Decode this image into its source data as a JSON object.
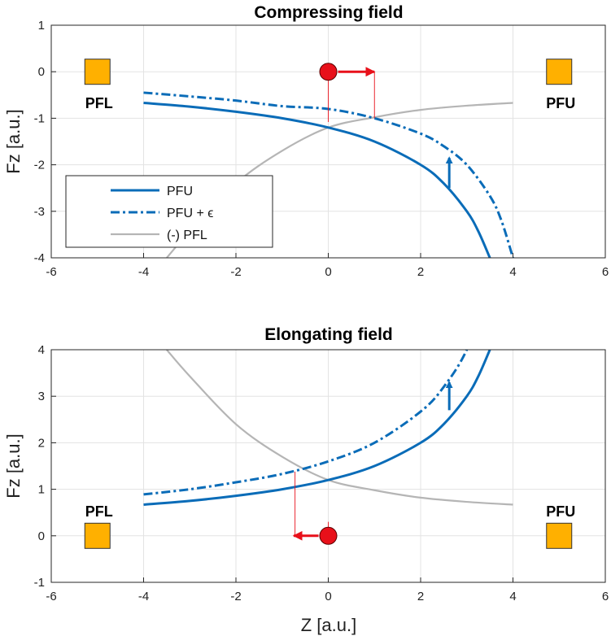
{
  "colors": {
    "pfu": "#0a6cb8",
    "pfl": "#b5b5b5",
    "square_fill": "#ffb000",
    "square_edge": "#333333",
    "marker": "#e8101a",
    "grid": "#e3e3e3"
  },
  "chart_data": [
    {
      "type": "line",
      "title": "Compressing field",
      "xlabel": "",
      "ylabel": "Fz [a.u.]",
      "xlim": [
        -6,
        6
      ],
      "ylim": [
        -4,
        1
      ],
      "xticks": [
        -6,
        -4,
        -2,
        0,
        2,
        4,
        6
      ],
      "yticks": [
        -4,
        -3,
        -2,
        -1,
        0,
        1
      ],
      "grid": true,
      "legend": {
        "placement": "bottom-left",
        "entries": [
          {
            "label": "PFU",
            "style": "solid",
            "color": "#0a6cb8"
          },
          {
            "label": "PFU + ϵ",
            "style": "dashdot",
            "color": "#0a6cb8"
          },
          {
            "label": "(-) PFL",
            "style": "solid",
            "color": "#b5b5b5"
          }
        ]
      },
      "series": [
        {
          "key": "pfu",
          "x": [
            -4,
            -3,
            -2,
            -1,
            0,
            1,
            2,
            2.5,
            3,
            3.25,
            3.5
          ],
          "y": [
            -0.67,
            -0.75,
            -0.86,
            -1.0,
            -1.2,
            -1.5,
            -2.0,
            -2.4,
            -3.0,
            -3.43,
            -4.0
          ]
        },
        {
          "key": "pfu_eps",
          "x": [
            -4,
            -3,
            -2,
            -1,
            0,
            1,
            2,
            2.5,
            3,
            3.5,
            3.75,
            4
          ],
          "y": [
            -0.45,
            -0.53,
            -0.62,
            -0.74,
            -0.8,
            -1.0,
            -1.33,
            -1.6,
            -2.0,
            -2.67,
            -3.2,
            -4.0
          ]
        },
        {
          "key": "pfl",
          "x": [
            -3.5,
            -3,
            -2,
            -1,
            0,
            1,
            2,
            3,
            4
          ],
          "y": [
            -4.0,
            -3.43,
            -2.4,
            -1.7,
            -1.2,
            -0.98,
            -0.82,
            -0.73,
            -0.67
          ]
        }
      ],
      "squares": [
        {
          "label": "PFL",
          "x": -5,
          "y": 0
        },
        {
          "label": "PFU",
          "x": 5,
          "y": 0
        }
      ],
      "marker": {
        "x": 0,
        "y": 0,
        "arrow_to_x": 1,
        "vlines": [
          {
            "x": 0,
            "y1": -1.08,
            "y2": 0
          },
          {
            "x": 1,
            "y1": -1.0,
            "y2": 0
          }
        ]
      },
      "shift_arrow": {
        "x": 2.62,
        "y_from": -2.5,
        "y_to": -1.85
      }
    },
    {
      "type": "line",
      "title": "Elongating field",
      "xlabel": "Z [a.u.]",
      "ylabel": "Fz [a.u.]",
      "xlim": [
        -6,
        6
      ],
      "ylim": [
        -1,
        4
      ],
      "xticks": [
        -6,
        -4,
        -2,
        0,
        2,
        4,
        6
      ],
      "yticks": [
        -1,
        0,
        1,
        2,
        3,
        4
      ],
      "grid": true,
      "series": [
        {
          "key": "pfu",
          "x": [
            -4,
            -3,
            -2,
            -1,
            0,
            1,
            2,
            2.5,
            3,
            3.25,
            3.5
          ],
          "y": [
            0.67,
            0.75,
            0.86,
            1.0,
            1.2,
            1.5,
            2.0,
            2.4,
            3.0,
            3.43,
            4.0
          ]
        },
        {
          "key": "pfu_eps",
          "x": [
            -4,
            -3,
            -2,
            -1,
            0,
            1,
            2,
            2.5,
            3,
            3.5
          ],
          "y": [
            0.89,
            1.0,
            1.15,
            1.33,
            1.6,
            2.0,
            2.67,
            3.2,
            4.0,
            5.33
          ]
        },
        {
          "key": "pfl",
          "x": [
            -3.5,
            -3,
            -2,
            -1,
            0,
            1,
            2,
            3,
            4
          ],
          "y": [
            4.0,
            3.43,
            2.4,
            1.7,
            1.2,
            0.98,
            0.82,
            0.73,
            0.67
          ]
        }
      ],
      "squares": [
        {
          "label": "PFL",
          "x": -5,
          "y": 0
        },
        {
          "label": "PFU",
          "x": 5,
          "y": 0
        }
      ],
      "marker": {
        "x": 0,
        "y": 0,
        "arrow_to_x": -0.75,
        "vlines": [
          {
            "x": 0,
            "y1": 0.3,
            "y2": 0
          },
          {
            "x": -0.72,
            "y1": 1.38,
            "y2": 0
          }
        ]
      },
      "shift_arrow": {
        "x": 2.62,
        "y_from": 2.7,
        "y_to": 3.3
      }
    }
  ]
}
